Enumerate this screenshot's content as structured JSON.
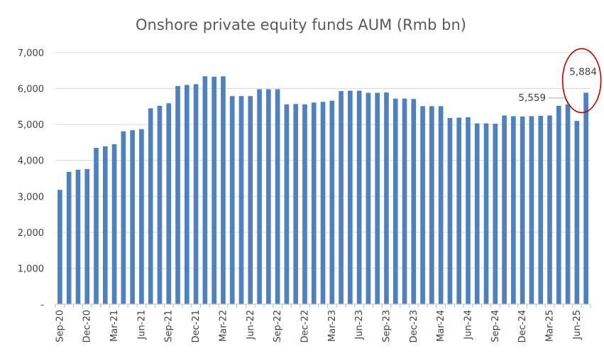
{
  "chart_data": {
    "type": "bar",
    "title": "Onshore private equity funds AUM (Rmb bn)",
    "xlabel": "",
    "ylabel": "",
    "ylim": [
      0,
      7000
    ],
    "y_ticks": [
      0,
      1000,
      2000,
      3000,
      4000,
      5000,
      6000,
      7000
    ],
    "y_tick_labels": [
      "-",
      "1,000",
      "2,000",
      "3,000",
      "4,000",
      "5,000",
      "6,000",
      "7,000"
    ],
    "grid": true,
    "legend": "none",
    "bar_color": "#4f81bd",
    "annotation_color": "#c00000",
    "categories": [
      "Sep-20",
      "Oct-20",
      "Nov-20",
      "Dec-20",
      "Jan-21",
      "Feb-21",
      "Mar-21",
      "Apr-21",
      "May-21",
      "Jun-21",
      "Jul-21",
      "Aug-21",
      "Sep-21",
      "Oct-21",
      "Nov-21",
      "Dec-21",
      "Jan-22",
      "Feb-22",
      "Mar-22",
      "Apr-22",
      "May-22",
      "Jun-22",
      "Jul-22",
      "Aug-22",
      "Sep-22",
      "Oct-22",
      "Nov-22",
      "Dec-22",
      "Jan-23",
      "Feb-23",
      "Mar-23",
      "Apr-23",
      "May-23",
      "Jun-23",
      "Jul-23",
      "Aug-23",
      "Sep-23",
      "Oct-23",
      "Nov-23",
      "Dec-23",
      "Jan-24",
      "Feb-24",
      "Mar-24",
      "Apr-24",
      "May-24",
      "Jun-24",
      "Jul-24",
      "Aug-24",
      "Sep-24",
      "Oct-24",
      "Nov-24",
      "Dec-24",
      "Jan-25",
      "Feb-25",
      "Mar-25",
      "Apr-25",
      "May-25",
      "Jun-25",
      "Jul-25"
    ],
    "x_tick_labels": [
      "Sep-20",
      "Dec-20",
      "Mar-21",
      "Jun-21",
      "Sep-21",
      "Dec-21",
      "Mar-22",
      "Jun-22",
      "Sep-22",
      "Dec-22",
      "Mar-23",
      "Jun-23",
      "Sep-23",
      "Dec-23",
      "Mar-24",
      "Jun-24",
      "Sep-24",
      "Dec-24",
      "Mar-25",
      "Jun-25"
    ],
    "values": [
      3180,
      3680,
      3740,
      3760,
      4350,
      4390,
      4450,
      4810,
      4840,
      4870,
      5450,
      5520,
      5590,
      6070,
      6100,
      6120,
      6340,
      6330,
      6340,
      5790,
      5790,
      5790,
      5980,
      5980,
      5980,
      5560,
      5570,
      5560,
      5610,
      5630,
      5660,
      5930,
      5940,
      5940,
      5880,
      5880,
      5890,
      5720,
      5720,
      5710,
      5510,
      5510,
      5510,
      5180,
      5190,
      5200,
      5030,
      5030,
      5020,
      5250,
      5230,
      5220,
      5230,
      5240,
      5250,
      5520,
      5559,
      5100,
      5884
    ],
    "annotations": [
      {
        "label": "5,559",
        "category": "May-25",
        "value": 5559
      },
      {
        "label": "5,884",
        "category": "Jul-25",
        "value": 5884,
        "circled": true
      }
    ]
  }
}
